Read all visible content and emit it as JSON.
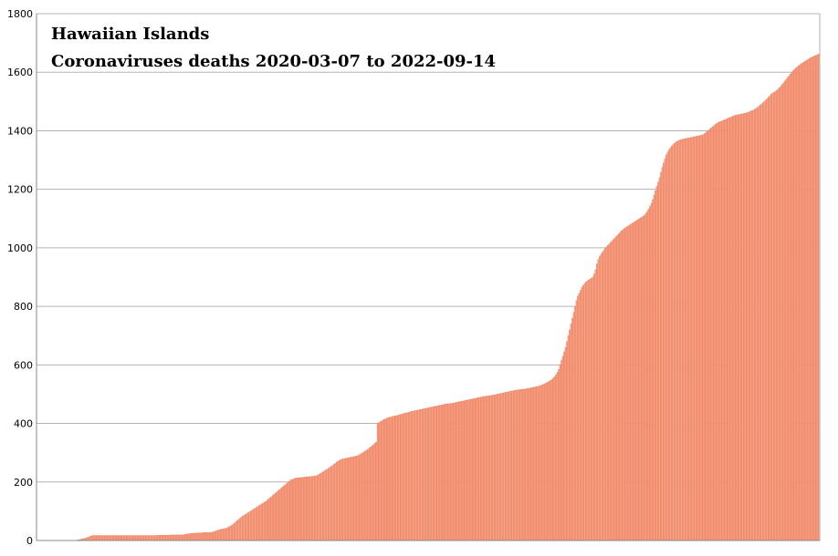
{
  "chart_data": {
    "type": "bar",
    "title": "Hawaiian Islands",
    "subtitle": "Coronaviruses deaths 2020-03-07 to 2022-09-14",
    "xlabel": "",
    "ylabel": "",
    "ylim": [
      0,
      1800
    ],
    "y_ticks": [
      "0",
      "200",
      "400",
      "600",
      "800",
      "1000",
      "1200",
      "1400",
      "1600",
      "1800"
    ],
    "grid": true,
    "bar_color": "#f4a58a",
    "bar_edge_color": "#ef6f4e",
    "x_start": "2020-03-07",
    "x_end": "2022-09-14",
    "series": [
      {
        "values": [
          0,
          0,
          0,
          0,
          0,
          0,
          0,
          0,
          0,
          0,
          0,
          0,
          0,
          0,
          0,
          0,
          0,
          0,
          0,
          0,
          0,
          0,
          0,
          0,
          0,
          0,
          0,
          0,
          0,
          1,
          2,
          3,
          4,
          5,
          6,
          7,
          9,
          10,
          12,
          14,
          16,
          17,
          17,
          17,
          17,
          17,
          17,
          17,
          17,
          17,
          17,
          17,
          17,
          17,
          17,
          17,
          17,
          17,
          17,
          17,
          17,
          17,
          17,
          17,
          17,
          17,
          17,
          17,
          17,
          17,
          17,
          17,
          17,
          17,
          17,
          17,
          17,
          17,
          17,
          17,
          17,
          17,
          17,
          17,
          17,
          17,
          17,
          17,
          17,
          18,
          18,
          18,
          18,
          18,
          18,
          18,
          18,
          18,
          19,
          19,
          19,
          19,
          19,
          19,
          19,
          19,
          19,
          19,
          20,
          21,
          22,
          23,
          23,
          24,
          24,
          25,
          25,
          25,
          26,
          26,
          26,
          26,
          27,
          27,
          27,
          27,
          27,
          27,
          28,
          29,
          30,
          32,
          34,
          35,
          37,
          38,
          39,
          40,
          41,
          42,
          44,
          47,
          49,
          52,
          56,
          60,
          64,
          68,
          72,
          76,
          80,
          83,
          86,
          89,
          92,
          95,
          98,
          101,
          104,
          107,
          110,
          113,
          116,
          119,
          122,
          125,
          128,
          131,
          134,
          138,
          142,
          146,
          150,
          154,
          158,
          162,
          166,
          170,
          174,
          178,
          182,
          186,
          190,
          194,
          198,
          202,
          206,
          208,
          210,
          212,
          213,
          214,
          214,
          215,
          215,
          216,
          216,
          217,
          217,
          218,
          218,
          219,
          219,
          220,
          220,
          221,
          223,
          226,
          229,
          232,
          235,
          238,
          241,
          244,
          247,
          250,
          253,
          256,
          260,
          264,
          268,
          271,
          274,
          276,
          278,
          279,
          280,
          281,
          282,
          283,
          284,
          285,
          286,
          287,
          288,
          289,
          291,
          294,
          297,
          300,
          303,
          306,
          309,
          312,
          316,
          320,
          324,
          328,
          332,
          336,
          400,
          403,
          406,
          409,
          412,
          414,
          416,
          418,
          420,
          421,
          422,
          424,
          425,
          426,
          427,
          428,
          430,
          431,
          432,
          434,
          435,
          436,
          437,
          438,
          440,
          441,
          442,
          443,
          444,
          445,
          446,
          447,
          448,
          449,
          450,
          451,
          452,
          453,
          454,
          455,
          456,
          457,
          458,
          459,
          460,
          461,
          462,
          463,
          464,
          465,
          466,
          467,
          467,
          468,
          468,
          469,
          470,
          471,
          472,
          473,
          474,
          475,
          476,
          477,
          478,
          479,
          480,
          481,
          482,
          483,
          484,
          485,
          486,
          487,
          488,
          489,
          490,
          491,
          492,
          493,
          493,
          494,
          494,
          495,
          496,
          497,
          498,
          499,
          500,
          501,
          502,
          503,
          504,
          505,
          506,
          507,
          508,
          509,
          510,
          511,
          512,
          513,
          514,
          515,
          515,
          516,
          516,
          517,
          517,
          518,
          519,
          520,
          521,
          522,
          523,
          524,
          525,
          526,
          527,
          528,
          530,
          532,
          534,
          536,
          538,
          541,
          544,
          547,
          550,
          555,
          560,
          567,
          575,
          585,
          600,
          615,
          630,
          645,
          660,
          680,
          700,
          720,
          740,
          760,
          780,
          800,
          820,
          835,
          845,
          855,
          865,
          872,
          878,
          883,
          887,
          890,
          893,
          896,
          900,
          910,
          925,
          945,
          960,
          970,
          978,
          985,
          992,
          998,
          1003,
          1008,
          1013,
          1018,
          1023,
          1028,
          1033,
          1038,
          1043,
          1048,
          1053,
          1058,
          1062,
          1066,
          1069,
          1072,
          1075,
          1078,
          1081,
          1084,
          1087,
          1090,
          1093,
          1096,
          1099,
          1102,
          1105,
          1108,
          1112,
          1118,
          1125,
          1133,
          1142,
          1152,
          1165,
          1180,
          1195,
          1210,
          1225,
          1240,
          1258,
          1275,
          1290,
          1305,
          1318,
          1328,
          1336,
          1342,
          1348,
          1353,
          1357,
          1361,
          1364,
          1366,
          1368,
          1370,
          1371,
          1372,
          1373,
          1374,
          1375,
          1376,
          1377,
          1378,
          1379,
          1380,
          1381,
          1382,
          1383,
          1384,
          1385,
          1387,
          1390,
          1394,
          1398,
          1402,
          1406,
          1410,
          1414,
          1418,
          1422,
          1425,
          1428,
          1430,
          1432,
          1434,
          1436,
          1438,
          1440,
          1442,
          1444,
          1446,
          1448,
          1450,
          1452,
          1453,
          1454,
          1455,
          1456,
          1457,
          1458,
          1459,
          1460,
          1461,
          1463,
          1465,
          1467,
          1469,
          1471,
          1474,
          1477,
          1480,
          1484,
          1488,
          1492,
          1496,
          1500,
          1505,
          1510,
          1515,
          1520,
          1525,
          1528,
          1531,
          1534,
          1538,
          1542,
          1547,
          1552,
          1558,
          1564,
          1570,
          1576,
          1582,
          1588,
          1594,
          1600,
          1605,
          1610,
          1614,
          1618,
          1622,
          1626,
          1629,
          1632,
          1635,
          1638,
          1641,
          1644,
          1647,
          1650,
          1652,
          1654,
          1656,
          1658,
          1660,
          1662
        ]
      }
    ]
  }
}
